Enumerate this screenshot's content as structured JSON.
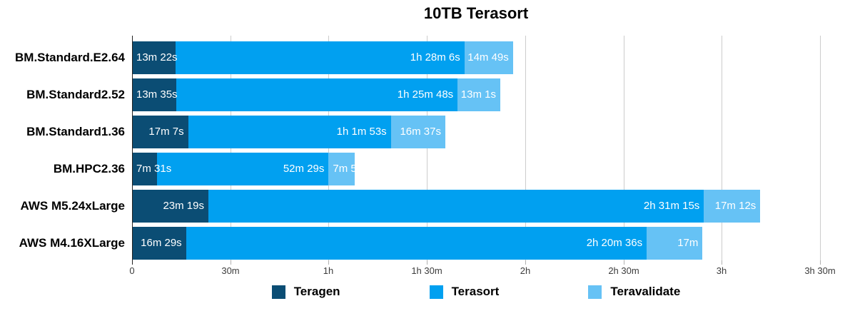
{
  "title": "10TB Terasort",
  "colors": {
    "teragen": "#0b4d74",
    "terasort": "#01a0f0",
    "teravalidate": "#66c2f5",
    "gridline": "#cccccc",
    "axis_line": "#222222",
    "bar_label_text": "#ffffff"
  },
  "legend": {
    "items": [
      {
        "label": "Teragen",
        "color": "#0b4d74"
      },
      {
        "label": "Terasort",
        "color": "#01a0f0"
      },
      {
        "label": "Teravalidate",
        "color": "#66c2f5"
      }
    ]
  },
  "chart_data": {
    "type": "bar",
    "orientation": "horizontal",
    "stacked": true,
    "title": "10TB Terasort",
    "xlabel": "",
    "ylabel": "",
    "x_axis": {
      "tick_labels": [
        "0",
        "30m",
        "1h",
        "1h 30m",
        "2h",
        "2h 30m",
        "3h",
        "3h 30m"
      ],
      "tick_minutes": [
        0,
        30,
        60,
        90,
        120,
        150,
        180,
        210
      ],
      "max_minutes": 210,
      "grid": true
    },
    "categories": [
      "BM.Standard.E2.64",
      "BM.Standard2.52",
      "BM.Standard1.36",
      "BM.HPC2.36",
      "AWS M5.24xLarge",
      "AWS M4.16XLarge"
    ],
    "series": [
      {
        "name": "Teragen",
        "color": "#0b4d74",
        "values_minutes": [
          13.37,
          13.58,
          17.12,
          7.52,
          23.32,
          16.48
        ],
        "labels": [
          "13m 22s",
          "13m 35s",
          "17m 7s",
          "7m 31s",
          "23m 19s",
          "16m 29s"
        ]
      },
      {
        "name": "Terasort",
        "color": "#01a0f0",
        "values_minutes": [
          88.1,
          85.8,
          61.88,
          52.48,
          151.25,
          140.6
        ],
        "labels": [
          "1h 28m 6s",
          "1h 25m 48s",
          "1h 1m 53s",
          "52m 29s",
          "2h 31m 15s",
          "2h 20m 36s"
        ]
      },
      {
        "name": "Teravalidate",
        "color": "#66c2f5",
        "values_minutes": [
          14.82,
          13.02,
          16.62,
          8.0,
          17.2,
          17.05
        ],
        "labels": [
          "14m 49s",
          "13m 1s",
          "16m 37s",
          "7m 5",
          "17m 12s",
          "17m"
        ]
      }
    ],
    "legend_position": "bottom"
  }
}
